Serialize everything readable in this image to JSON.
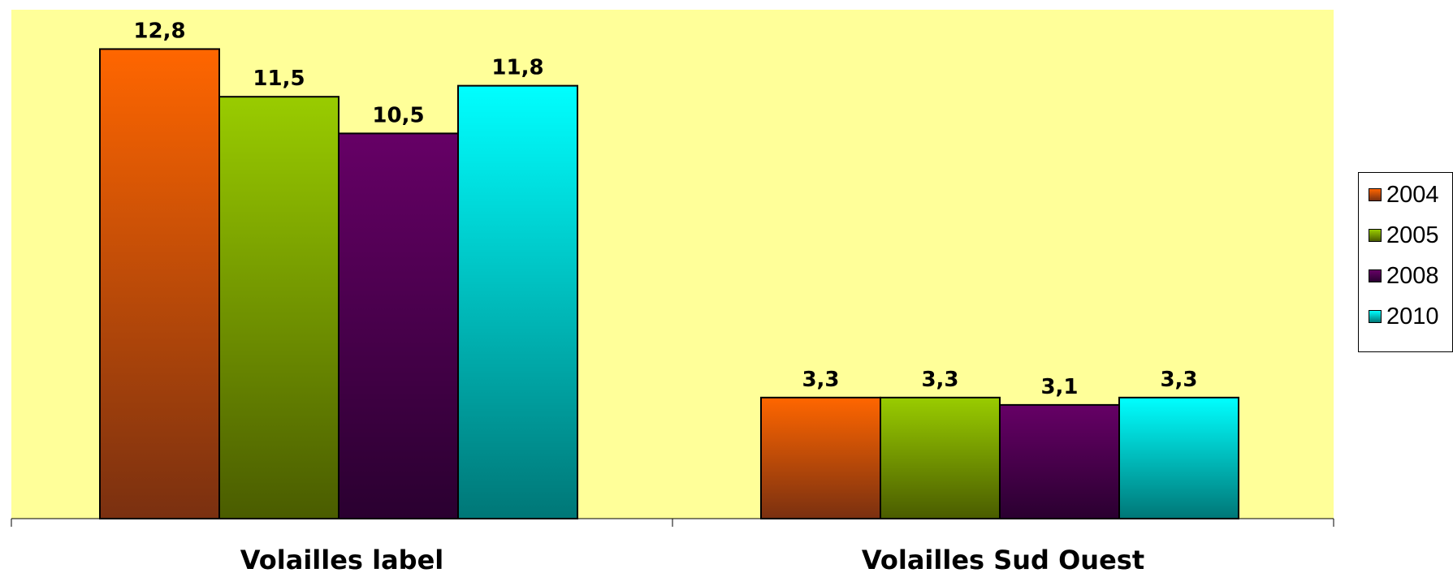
{
  "chart_data": {
    "type": "bar",
    "categories": [
      "Volailles label",
      "Volailles Sud Ouest"
    ],
    "series": [
      {
        "name": "2004",
        "values": [
          12.8,
          3.3
        ],
        "labels": [
          "12,8",
          "3,3"
        ]
      },
      {
        "name": "2005",
        "values": [
          11.5,
          3.3
        ],
        "labels": [
          "11,5",
          "3,3"
        ]
      },
      {
        "name": "2008",
        "values": [
          10.5,
          3.1
        ],
        "labels": [
          "10,5",
          "3,1"
        ]
      },
      {
        "name": "2010",
        "values": [
          11.8,
          3.3
        ],
        "labels": [
          "11,8",
          "3,3"
        ]
      }
    ],
    "ylim": [
      0,
      14
    ],
    "grid": false,
    "legend": "right",
    "plot_background": "#ffff99",
    "colors": [
      {
        "top": "#ff6600",
        "bottom": "#7a3010"
      },
      {
        "top": "#99cc00",
        "bottom": "#4a5c00"
      },
      {
        "top": "#660066",
        "bottom": "#2a0030"
      },
      {
        "top": "#00ffff",
        "bottom": "#007777"
      }
    ]
  }
}
